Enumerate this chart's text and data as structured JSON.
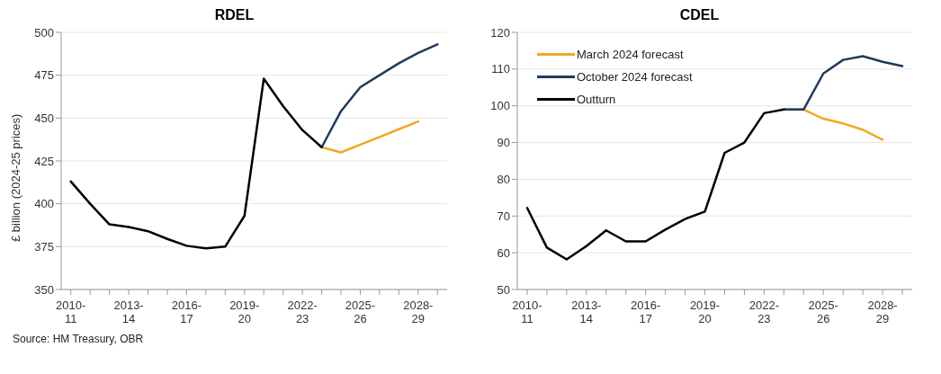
{
  "chart_data": [
    {
      "type": "line",
      "title": "RDEL",
      "ylabel": "£ billion (2024-25 prices)",
      "categories": [
        "2010-11",
        null,
        null,
        "2013-14",
        null,
        null,
        "2016-17",
        null,
        null,
        "2019-20",
        null,
        null,
        "2022-23",
        null,
        null,
        "2025-26",
        null,
        null,
        "2028-29",
        null
      ],
      "series": [
        {
          "color": "#f5a623",
          "values": [
            null,
            null,
            null,
            null,
            null,
            null,
            null,
            null,
            null,
            null,
            null,
            null,
            null,
            433,
            430,
            434.5,
            439,
            443.5,
            448,
            null
          ]
        },
        {
          "color": "#1f3b5a",
          "values": [
            null,
            null,
            null,
            null,
            null,
            null,
            null,
            null,
            null,
            null,
            null,
            null,
            null,
            433,
            454,
            468,
            475,
            482,
            488,
            493
          ]
        },
        {
          "color": "#000000",
          "values": [
            413,
            400,
            388,
            386.5,
            384,
            379.5,
            375.5,
            374,
            375,
            393,
            473,
            457,
            443,
            433,
            null,
            null,
            null,
            null,
            null,
            null
          ]
        }
      ],
      "ylim": [
        350,
        500
      ],
      "yticks": [
        350,
        375,
        400,
        425,
        450,
        475,
        500
      ],
      "grid": "y",
      "legend": false,
      "annotations": [
        "Source: HM Treasury, OBR"
      ]
    },
    {
      "type": "line",
      "title": "CDEL",
      "categories": [
        "2010-11",
        null,
        null,
        "2013-14",
        null,
        null,
        "2016-17",
        null,
        null,
        "2019-20",
        null,
        null,
        "2022-23",
        null,
        null,
        "2025-26",
        null,
        null,
        "2028-29",
        null
      ],
      "series": [
        {
          "name": "March 2024 forecast",
          "color": "#f5a623",
          "values": [
            null,
            null,
            null,
            null,
            null,
            null,
            null,
            null,
            null,
            null,
            null,
            null,
            null,
            99,
            99,
            96.5,
            95.2,
            93.5,
            90.8,
            null
          ]
        },
        {
          "name": "October 2024 forecast",
          "color": "#1f3b5a",
          "values": [
            null,
            null,
            null,
            null,
            null,
            null,
            null,
            null,
            null,
            null,
            null,
            null,
            null,
            99,
            99,
            108.8,
            112.5,
            113.5,
            112,
            110.8
          ]
        },
        {
          "name": "Outturn",
          "color": "#000000",
          "values": [
            72.2,
            61.4,
            58.2,
            61.8,
            66.1,
            63.1,
            63.1,
            66.3,
            69.2,
            71.2,
            87.2,
            90,
            98,
            99,
            null,
            null,
            null,
            null,
            null,
            null
          ]
        }
      ],
      "ylim": [
        50,
        120
      ],
      "yticks": [
        50,
        60,
        70,
        80,
        90,
        100,
        110,
        120
      ],
      "grid": "y",
      "legend": "top left"
    }
  ]
}
